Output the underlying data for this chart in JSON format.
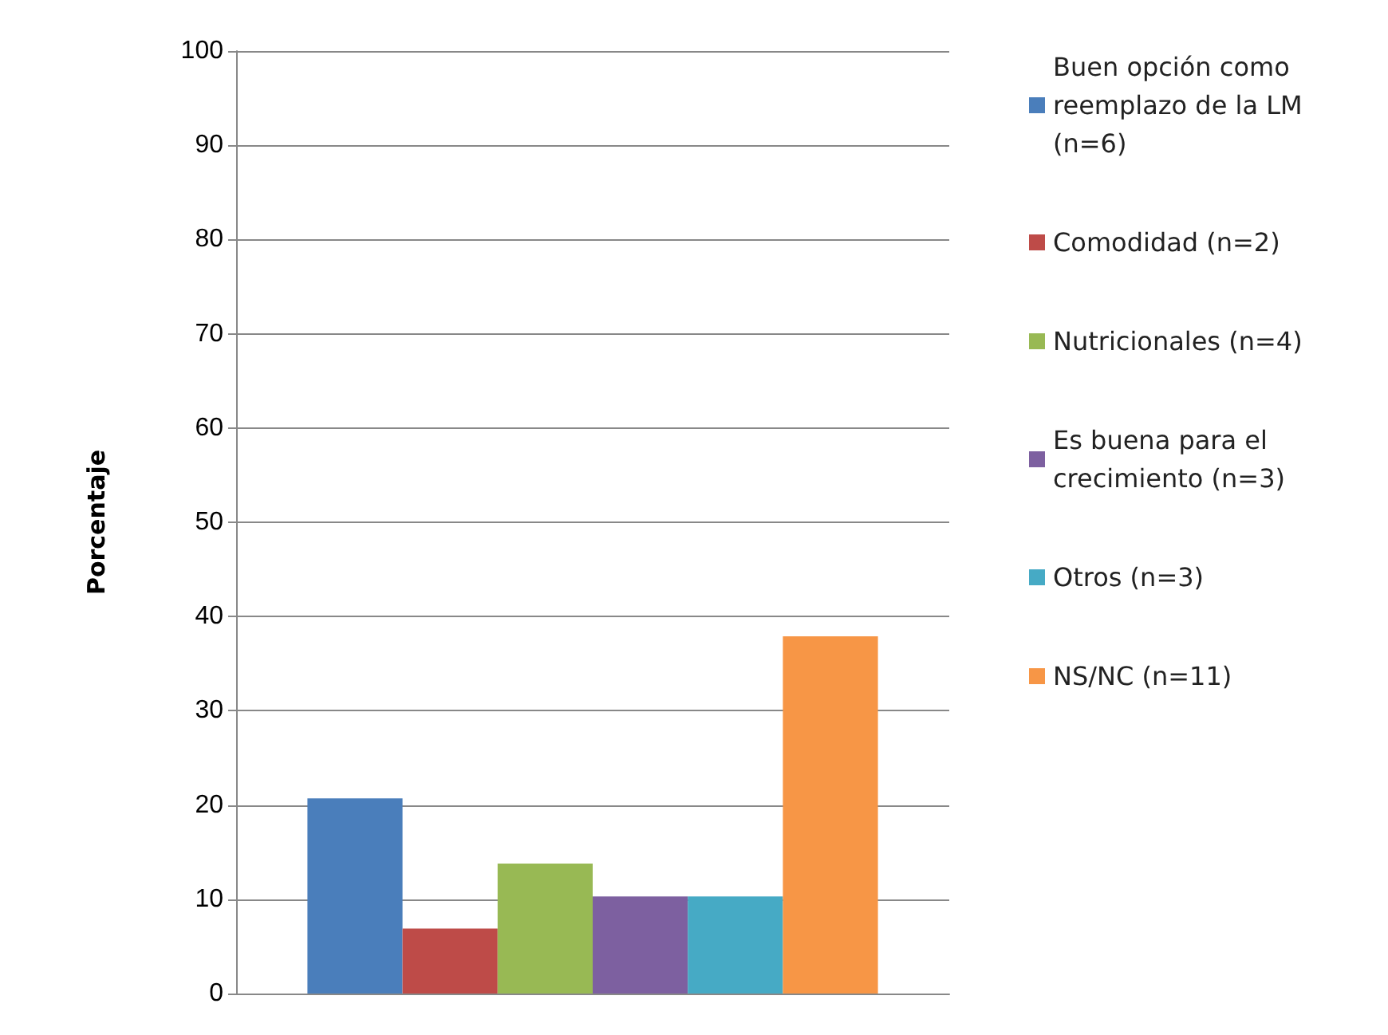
{
  "chart_data": {
    "type": "bar",
    "ylabel": "Porcentaje",
    "categories": [
      null
    ],
    "series": [
      {
        "name": "Buen opción como reemplazo de la LM (n=6)",
        "color": "#4a7ebb",
        "values": [
          20.7
        ]
      },
      {
        "name": "Comodidad (n=2)",
        "color": "#be4b48",
        "values": [
          6.9
        ]
      },
      {
        "name": "Nutricionales (n=4)",
        "color": "#98b954",
        "values": [
          13.8
        ]
      },
      {
        "name": "Es buena para el crecimiento (n=3)",
        "color": "#7d60a0",
        "values": [
          10.3
        ]
      },
      {
        "name": "Otros (n=3)",
        "color": "#46aac5",
        "values": [
          10.3
        ]
      },
      {
        "name": "NS/NC (n=11)",
        "color": "#f79646",
        "values": [
          37.9
        ]
      }
    ],
    "ylim": [
      0,
      100
    ],
    "yticks": [
      0,
      10,
      20,
      30,
      40,
      50,
      60,
      70,
      80,
      90,
      100
    ],
    "grid": "y",
    "legend": "right"
  }
}
